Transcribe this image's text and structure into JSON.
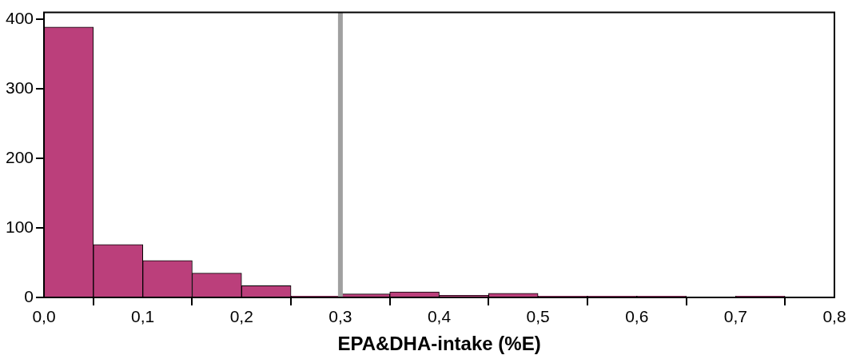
{
  "chart_data": {
    "type": "histogram",
    "xlabel": "EPA&DHA-intake (%E)",
    "bins": [
      0,
      0.05,
      0.1,
      0.15,
      0.2,
      0.25,
      0.3,
      0.35,
      0.4,
      0.45,
      0.5,
      0.55,
      0.6,
      0.65,
      0.7,
      0.75,
      0.8
    ],
    "values": [
      389,
      76,
      53,
      35,
      17,
      2,
      5,
      8,
      3,
      6,
      2,
      2,
      2,
      0,
      2,
      0
    ],
    "color": "#bb3f7b",
    "xlim": [
      0,
      0.8
    ],
    "xticks": [
      {
        "value": 0,
        "label": "0,0"
      },
      {
        "value": 0.1,
        "label": "0,1"
      },
      {
        "value": 0.2,
        "label": "0,2"
      },
      {
        "value": 0.3,
        "label": "0,3"
      },
      {
        "value": 0.4,
        "label": "0,4"
      },
      {
        "value": 0.5,
        "label": "0,5"
      },
      {
        "value": 0.6,
        "label": "0,6"
      },
      {
        "value": 0.7,
        "label": "0,7"
      },
      {
        "value": 0.8,
        "label": "0,8"
      }
    ],
    "ylim": [
      0,
      410
    ],
    "yticks": [
      0,
      100,
      200,
      300,
      400
    ],
    "ref_lines": [
      {
        "axis": "x",
        "value": 0.3,
        "color": "#a0a0a0"
      }
    ],
    "grid": false,
    "legend": false
  }
}
